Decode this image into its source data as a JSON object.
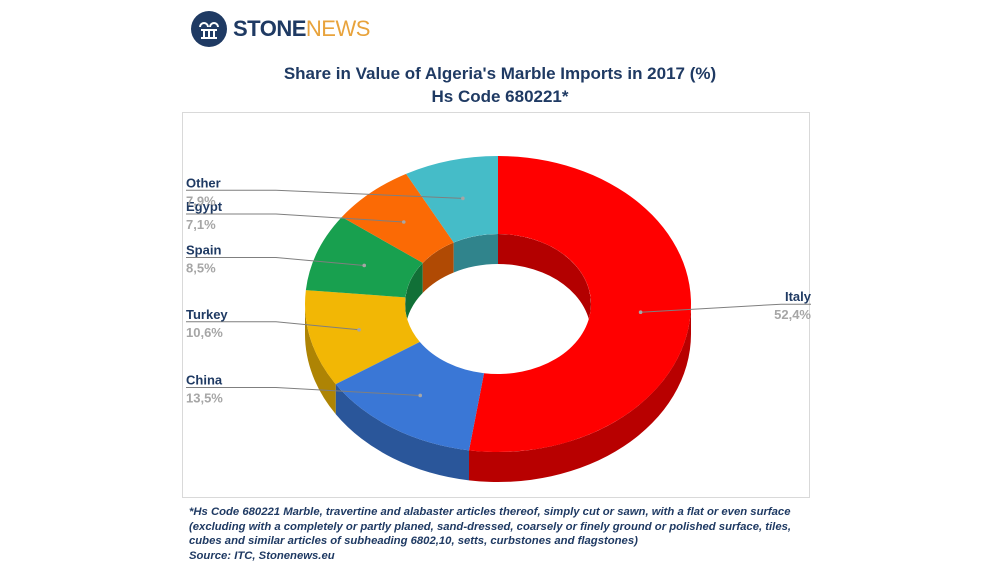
{
  "brand": {
    "name_part1": "STONE",
    "name_part2": "NEWS",
    "icon": "column-arches-icon"
  },
  "chart_data": {
    "type": "pie",
    "title": "Share in Value of Algeria's Marble Imports in 2017 (%)",
    "subtitle": "Hs Code 680221*",
    "slices": [
      {
        "label": "Italy",
        "value": 52.4,
        "display": "52,4%",
        "color": "#ff0000"
      },
      {
        "label": "China",
        "value": 13.5,
        "display": "13,5%",
        "color": "#3a77d6"
      },
      {
        "label": "Turkey",
        "value": 10.6,
        "display": "10,6%",
        "color": "#f2b705"
      },
      {
        "label": "Spain",
        "value": 8.5,
        "display": "8,5%",
        "color": "#18a04f"
      },
      {
        "label": "Egypt",
        "value": 7.1,
        "display": "7,1%",
        "color": "#fb6a05"
      },
      {
        "label": "Other",
        "value": 7.9,
        "display": "7,9%",
        "color": "#45bcc8"
      }
    ]
  },
  "footnote": "*Hs Code 680221 Marble, travertine and alabaster articles thereof, simply cut or sawn, with a flat or even surface (excluding with a completely or partly planed, sand-dressed, coarsely or finely ground or polished surface, tiles, cubes and similar articles of subheading 6802,10, setts, curbstones and flagstones)",
  "source": "Source: ITC, Stonenews.eu"
}
